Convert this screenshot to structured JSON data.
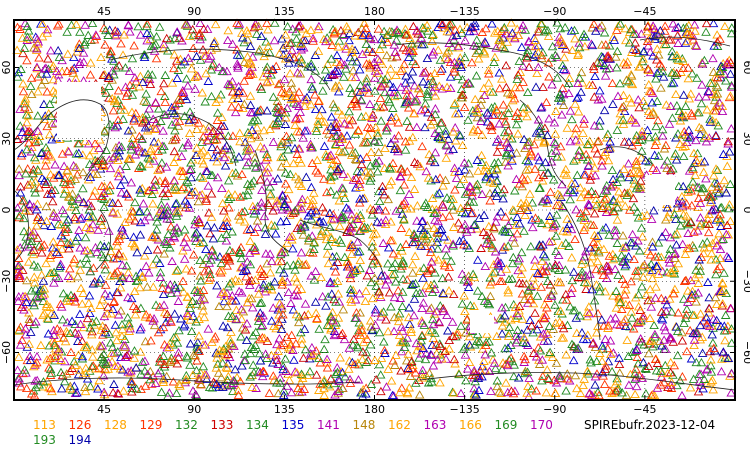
{
  "map": {
    "projection": "cylindrical-equidistant",
    "lon_range": [
      0,
      360
    ],
    "lat_range": [
      -80,
      80
    ],
    "top_tick_labels": [
      "45",
      "90",
      "135",
      "180",
      "−135",
      "−90",
      "−45"
    ],
    "bottom_tick_labels": [
      "45",
      "90",
      "135",
      "180",
      "−135",
      "−90",
      "−45"
    ],
    "left_tick_labels": [
      "60",
      "30",
      "0",
      "−30",
      "−60"
    ],
    "right_tick_labels": [
      "60",
      "30",
      "0",
      "−30",
      "−60"
    ],
    "marker": "triangle-outline",
    "station_count_approx": 5000
  },
  "legend": {
    "items": [
      {
        "label": "113",
        "color": "#ffa500"
      },
      {
        "label": "126",
        "color": "#ff3300"
      },
      {
        "label": "128",
        "color": "#ffa500"
      },
      {
        "label": "129",
        "color": "#ff3300"
      },
      {
        "label": "132",
        "color": "#228b22"
      },
      {
        "label": "133",
        "color": "#cc0000"
      },
      {
        "label": "134",
        "color": "#228b22"
      },
      {
        "label": "135",
        "color": "#0000cc"
      },
      {
        "label": "141",
        "color": "#b000b0"
      },
      {
        "label": "148",
        "color": "#b8860b"
      },
      {
        "label": "162",
        "color": "#ffa500"
      },
      {
        "label": "163",
        "color": "#b000b0"
      },
      {
        "label": "166",
        "color": "#ffa500"
      },
      {
        "label": "169",
        "color": "#228b22"
      },
      {
        "label": "170",
        "color": "#b000b0"
      },
      {
        "label": "193",
        "color": "#228b22"
      },
      {
        "label": "194",
        "color": "#0000aa"
      }
    ]
  },
  "source_label": "SPIREbufr.2023-12-04"
}
